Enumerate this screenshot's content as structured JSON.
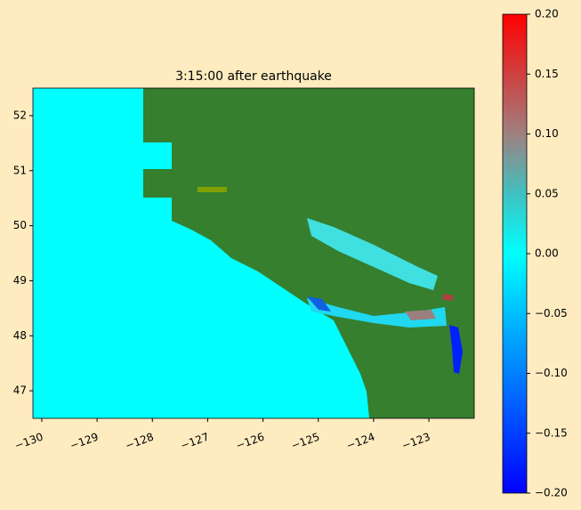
{
  "chart_data": {
    "type": "raster",
    "title": "3:15:00 after earthquake",
    "xlim": [
      -130.16,
      -122.18
    ],
    "ylim": [
      46.5,
      52.5
    ],
    "xticks": [
      {
        "value": -130,
        "label": "−130"
      },
      {
        "value": -129,
        "label": "−129"
      },
      {
        "value": -128,
        "label": "−128"
      },
      {
        "value": -127,
        "label": "−127"
      },
      {
        "value": -126,
        "label": "−126"
      },
      {
        "value": -125,
        "label": "−125"
      },
      {
        "value": -124,
        "label": "−124"
      },
      {
        "value": -123,
        "label": "−123"
      }
    ],
    "yticks": [
      47,
      48,
      49,
      50,
      51,
      52
    ],
    "colorbar": {
      "lim": [
        -0.2,
        0.2
      ],
      "ticks": [
        {
          "value": -0.2,
          "label": "−0.20"
        },
        {
          "value": -0.15,
          "label": "−0.15"
        },
        {
          "value": -0.1,
          "label": "−0.10"
        },
        {
          "value": -0.05,
          "label": "−0.05"
        },
        {
          "value": 0,
          "label": "0.00"
        },
        0.05,
        {
          "value": 0.1,
          "label": "0.10"
        },
        0.15,
        {
          "value": 0.2,
          "label": "0.20"
        }
      ],
      "colormap": [
        {
          "value": -0.2,
          "color": "#0000ff"
        },
        {
          "value": -0.1,
          "color": "#0080ff"
        },
        {
          "value": 0,
          "color": "#00ffff"
        },
        {
          "value": 0.05,
          "color": "#40c0c0"
        },
        {
          "value": 0.1,
          "color": "#a08080"
        },
        {
          "value": 0.2,
          "color": "#ff0000"
        }
      ]
    }
  }
}
